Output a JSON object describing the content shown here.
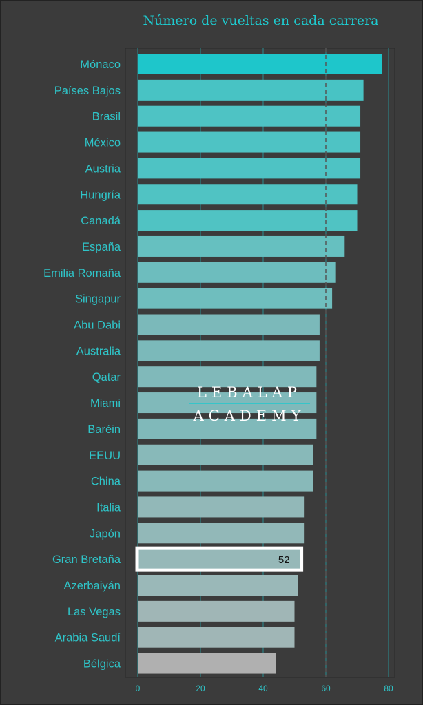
{
  "chart_data": {
    "type": "bar",
    "orientation": "horizontal",
    "title": "Número de vueltas en cada carrera",
    "xlabel": "",
    "ylabel": "",
    "xlim": [
      0,
      82
    ],
    "x_ticks": [
      0,
      20,
      40,
      60,
      80
    ],
    "grid": true,
    "reference_line": 60,
    "categories": [
      "Mónaco",
      "Países Bajos",
      "Brasil",
      "México",
      "Austria",
      "Hungría",
      "Canadá",
      "España",
      "Emilia Romaña",
      "Singapur",
      "Abu Dabi",
      "Australia",
      "Qatar",
      "Miami",
      "Baréin",
      "EEUU",
      "China",
      "Italia",
      "Japón",
      "Gran Bretaña",
      "Azerbaiyán",
      "Las Vegas",
      "Arabia Saudí",
      "Bélgica"
    ],
    "values": [
      78,
      72,
      71,
      71,
      71,
      70,
      70,
      66,
      63,
      62,
      58,
      58,
      57,
      57,
      57,
      56,
      56,
      53,
      53,
      52,
      51,
      50,
      50,
      44
    ],
    "colors": [
      "#1ec6cb",
      "#48c3c4",
      "#4ec3c4",
      "#4ec3c4",
      "#4ec3c4",
      "#50c3c3",
      "#50c3c3",
      "#66c0c0",
      "#6dbdbe",
      "#6fbebe",
      "#7bb9ba",
      "#7bb9ba",
      "#80b9ba",
      "#80b9ba",
      "#80b9ba",
      "#88b9b9",
      "#88b9b9",
      "#92b8b8",
      "#92b8b8",
      "#96b8b8",
      "#9ab8b8",
      "#a0b6b6",
      "#a0b6b6",
      "#b0b0b0"
    ],
    "highlight": {
      "category": "Gran Bretaña",
      "label": "52"
    }
  },
  "watermark": {
    "line1": "LEBALAP",
    "line2": "ACADEMY"
  }
}
